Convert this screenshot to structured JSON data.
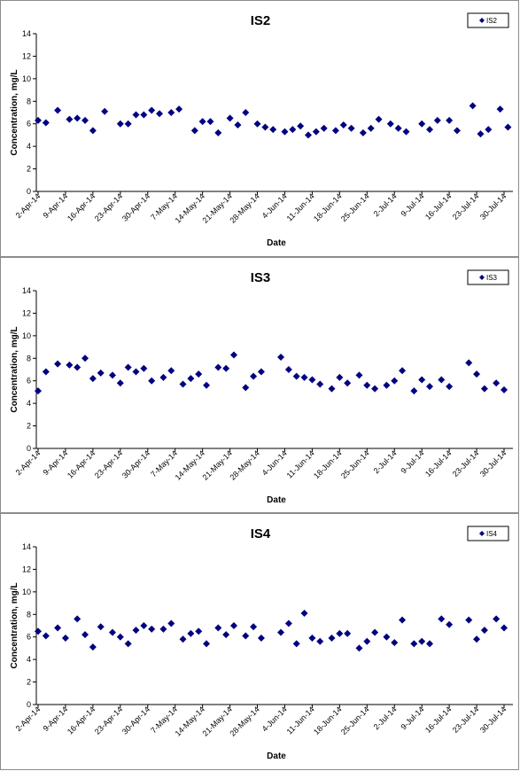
{
  "chart_data": [
    {
      "type": "scatter",
      "title": "IS2",
      "xlabel": "Date",
      "ylabel": "Concentration, mg/L",
      "ylim": [
        0,
        14
      ],
      "yticks": [
        0,
        2,
        4,
        6,
        8,
        10,
        12,
        14
      ],
      "xlim": [
        "2014-04-02",
        "2014-07-30"
      ],
      "xtick_labels": [
        "2-Apr-14",
        "9-Apr-14",
        "16-Apr-14",
        "23-Apr-14",
        "30-Apr-14",
        "7-May-14",
        "14-May-14",
        "21-May-14",
        "28-May-14",
        "4-Jun-14",
        "11-Jun-14",
        "18-Jun-14",
        "25-Jun-14",
        "2-Jul-14",
        "9-Jul-14",
        "16-Jul-14",
        "23-Jul-14",
        "30-Jul-14"
      ],
      "grid": false,
      "legend_position": "top-right",
      "marker_color": "#000080",
      "series": [
        {
          "name": "IS2",
          "points": [
            [
              "2014-04-02",
              6.3
            ],
            [
              "2014-04-04",
              6.1
            ],
            [
              "2014-04-07",
              7.2
            ],
            [
              "2014-04-10",
              6.4
            ],
            [
              "2014-04-12",
              6.5
            ],
            [
              "2014-04-14",
              6.3
            ],
            [
              "2014-04-16",
              5.4
            ],
            [
              "2014-04-19",
              7.1
            ],
            [
              "2014-04-23",
              6.0
            ],
            [
              "2014-04-25",
              6.0
            ],
            [
              "2014-04-27",
              6.8
            ],
            [
              "2014-04-29",
              6.8
            ],
            [
              "2014-05-01",
              7.2
            ],
            [
              "2014-05-03",
              6.9
            ],
            [
              "2014-05-06",
              7.0
            ],
            [
              "2014-05-08",
              7.3
            ],
            [
              "2014-05-12",
              5.4
            ],
            [
              "2014-05-14",
              6.2
            ],
            [
              "2014-05-16",
              6.2
            ],
            [
              "2014-05-18",
              5.2
            ],
            [
              "2014-05-21",
              6.5
            ],
            [
              "2014-05-23",
              5.9
            ],
            [
              "2014-05-25",
              7.0
            ],
            [
              "2014-05-28",
              6.0
            ],
            [
              "2014-05-30",
              5.7
            ],
            [
              "2014-06-01",
              5.5
            ],
            [
              "2014-06-04",
              5.3
            ],
            [
              "2014-06-06",
              5.5
            ],
            [
              "2014-06-08",
              5.8
            ],
            [
              "2014-06-10",
              5.0
            ],
            [
              "2014-06-12",
              5.3
            ],
            [
              "2014-06-14",
              5.6
            ],
            [
              "2014-06-17",
              5.4
            ],
            [
              "2014-06-19",
              5.9
            ],
            [
              "2014-06-21",
              5.6
            ],
            [
              "2014-06-24",
              5.2
            ],
            [
              "2014-06-26",
              5.6
            ],
            [
              "2014-06-28",
              6.4
            ],
            [
              "2014-07-01",
              6.0
            ],
            [
              "2014-07-03",
              5.6
            ],
            [
              "2014-07-05",
              5.3
            ],
            [
              "2014-07-09",
              6.0
            ],
            [
              "2014-07-11",
              5.5
            ],
            [
              "2014-07-13",
              6.3
            ],
            [
              "2014-07-16",
              6.3
            ],
            [
              "2014-07-18",
              5.4
            ],
            [
              "2014-07-22",
              7.6
            ],
            [
              "2014-07-24",
              5.1
            ],
            [
              "2014-07-26",
              5.5
            ],
            [
              "2014-07-29",
              7.3
            ],
            [
              "2014-07-31",
              5.7
            ]
          ]
        }
      ]
    },
    {
      "type": "scatter",
      "title": "IS3",
      "xlabel": "Date",
      "ylabel": "Concentration, mg/L",
      "ylim": [
        0,
        14
      ],
      "yticks": [
        0,
        2,
        4,
        6,
        8,
        10,
        12,
        14
      ],
      "xlim": [
        "2014-04-02",
        "2014-07-30"
      ],
      "xtick_labels": [
        "2-Apr-14",
        "9-Apr-14",
        "16-Apr-14",
        "23-Apr-14",
        "30-Apr-14",
        "7-May-14",
        "14-May-14",
        "21-May-14",
        "28-May-14",
        "4-Jun-14",
        "11-Jun-14",
        "18-Jun-14",
        "25-Jun-14",
        "2-Jul-14",
        "9-Jul-14",
        "16-Jul-14",
        "23-Jul-14",
        "30-Jul-14"
      ],
      "grid": false,
      "legend_position": "top-right",
      "marker_color": "#000080",
      "series": [
        {
          "name": "IS3",
          "points": [
            [
              "2014-04-02",
              5.1
            ],
            [
              "2014-04-04",
              6.8
            ],
            [
              "2014-04-07",
              7.5
            ],
            [
              "2014-04-10",
              7.4
            ],
            [
              "2014-04-12",
              7.2
            ],
            [
              "2014-04-14",
              8.0
            ],
            [
              "2014-04-16",
              6.2
            ],
            [
              "2014-04-18",
              6.7
            ],
            [
              "2014-04-21",
              6.5
            ],
            [
              "2014-04-23",
              5.8
            ],
            [
              "2014-04-25",
              7.2
            ],
            [
              "2014-04-27",
              6.8
            ],
            [
              "2014-04-29",
              7.1
            ],
            [
              "2014-05-01",
              6.0
            ],
            [
              "2014-05-04",
              6.3
            ],
            [
              "2014-05-06",
              6.9
            ],
            [
              "2014-05-09",
              5.7
            ],
            [
              "2014-05-11",
              6.2
            ],
            [
              "2014-05-13",
              6.6
            ],
            [
              "2014-05-15",
              5.6
            ],
            [
              "2014-05-18",
              7.2
            ],
            [
              "2014-05-20",
              7.1
            ],
            [
              "2014-05-22",
              8.3
            ],
            [
              "2014-05-25",
              5.4
            ],
            [
              "2014-05-27",
              6.4
            ],
            [
              "2014-05-29",
              6.8
            ],
            [
              "2014-06-03",
              8.1
            ],
            [
              "2014-06-05",
              7.0
            ],
            [
              "2014-06-07",
              6.4
            ],
            [
              "2014-06-09",
              6.3
            ],
            [
              "2014-06-11",
              6.1
            ],
            [
              "2014-06-13",
              5.7
            ],
            [
              "2014-06-16",
              5.3
            ],
            [
              "2014-06-18",
              6.3
            ],
            [
              "2014-06-20",
              5.8
            ],
            [
              "2014-06-23",
              6.5
            ],
            [
              "2014-06-25",
              5.6
            ],
            [
              "2014-06-27",
              5.3
            ],
            [
              "2014-06-30",
              5.6
            ],
            [
              "2014-07-02",
              6.0
            ],
            [
              "2014-07-04",
              6.9
            ],
            [
              "2014-07-07",
              5.1
            ],
            [
              "2014-07-09",
              6.1
            ],
            [
              "2014-07-11",
              5.5
            ],
            [
              "2014-07-14",
              6.1
            ],
            [
              "2014-07-16",
              5.5
            ],
            [
              "2014-07-21",
              7.6
            ],
            [
              "2014-07-23",
              6.6
            ],
            [
              "2014-07-25",
              5.3
            ],
            [
              "2014-07-28",
              5.8
            ],
            [
              "2014-07-30",
              5.2
            ]
          ]
        }
      ]
    },
    {
      "type": "scatter",
      "title": "IS4",
      "xlabel": "Date",
      "ylabel": "Concentration, mg/L",
      "ylim": [
        0,
        14
      ],
      "yticks": [
        0,
        2,
        4,
        6,
        8,
        10,
        12,
        14
      ],
      "xlim": [
        "2014-04-02",
        "2014-07-30"
      ],
      "xtick_labels": [
        "2-Apr-14",
        "9-Apr-14",
        "16-Apr-14",
        "23-Apr-14",
        "30-Apr-14",
        "7-May-14",
        "14-May-14",
        "21-May-14",
        "28-May-14",
        "4-Jun-14",
        "11-Jun-14",
        "18-Jun-14",
        "25-Jun-14",
        "2-Jul-14",
        "9-Jul-14",
        "16-Jul-14",
        "23-Jul-14",
        "30-Jul-14"
      ],
      "grid": false,
      "legend_position": "top-right",
      "marker_color": "#000080",
      "series": [
        {
          "name": "IS4",
          "points": [
            [
              "2014-04-02",
              6.5
            ],
            [
              "2014-04-04",
              6.1
            ],
            [
              "2014-04-07",
              6.8
            ],
            [
              "2014-04-09",
              5.9
            ],
            [
              "2014-04-12",
              7.6
            ],
            [
              "2014-04-14",
              6.2
            ],
            [
              "2014-04-16",
              5.1
            ],
            [
              "2014-04-18",
              6.9
            ],
            [
              "2014-04-21",
              6.4
            ],
            [
              "2014-04-23",
              6.0
            ],
            [
              "2014-04-25",
              5.4
            ],
            [
              "2014-04-27",
              6.6
            ],
            [
              "2014-04-29",
              7.0
            ],
            [
              "2014-05-01",
              6.7
            ],
            [
              "2014-05-04",
              6.7
            ],
            [
              "2014-05-06",
              7.2
            ],
            [
              "2014-05-09",
              5.8
            ],
            [
              "2014-05-11",
              6.3
            ],
            [
              "2014-05-13",
              6.5
            ],
            [
              "2014-05-15",
              5.4
            ],
            [
              "2014-05-18",
              6.8
            ],
            [
              "2014-05-20",
              6.2
            ],
            [
              "2014-05-22",
              7.0
            ],
            [
              "2014-05-25",
              6.1
            ],
            [
              "2014-05-27",
              6.9
            ],
            [
              "2014-05-29",
              5.9
            ],
            [
              "2014-06-03",
              6.4
            ],
            [
              "2014-06-05",
              7.2
            ],
            [
              "2014-06-07",
              5.4
            ],
            [
              "2014-06-09",
              8.1
            ],
            [
              "2014-06-11",
              5.9
            ],
            [
              "2014-06-13",
              5.6
            ],
            [
              "2014-06-16",
              5.9
            ],
            [
              "2014-06-18",
              6.3
            ],
            [
              "2014-06-20",
              6.3
            ],
            [
              "2014-06-23",
              5.0
            ],
            [
              "2014-06-25",
              5.6
            ],
            [
              "2014-06-27",
              6.4
            ],
            [
              "2014-06-30",
              6.0
            ],
            [
              "2014-07-02",
              5.5
            ],
            [
              "2014-07-04",
              7.5
            ],
            [
              "2014-07-07",
              5.4
            ],
            [
              "2014-07-09",
              5.6
            ],
            [
              "2014-07-11",
              5.4
            ],
            [
              "2014-07-14",
              7.6
            ],
            [
              "2014-07-16",
              7.1
            ],
            [
              "2014-07-21",
              7.5
            ],
            [
              "2014-07-23",
              5.8
            ],
            [
              "2014-07-25",
              6.6
            ],
            [
              "2014-07-28",
              7.6
            ],
            [
              "2014-07-30",
              6.8
            ]
          ]
        }
      ]
    }
  ]
}
